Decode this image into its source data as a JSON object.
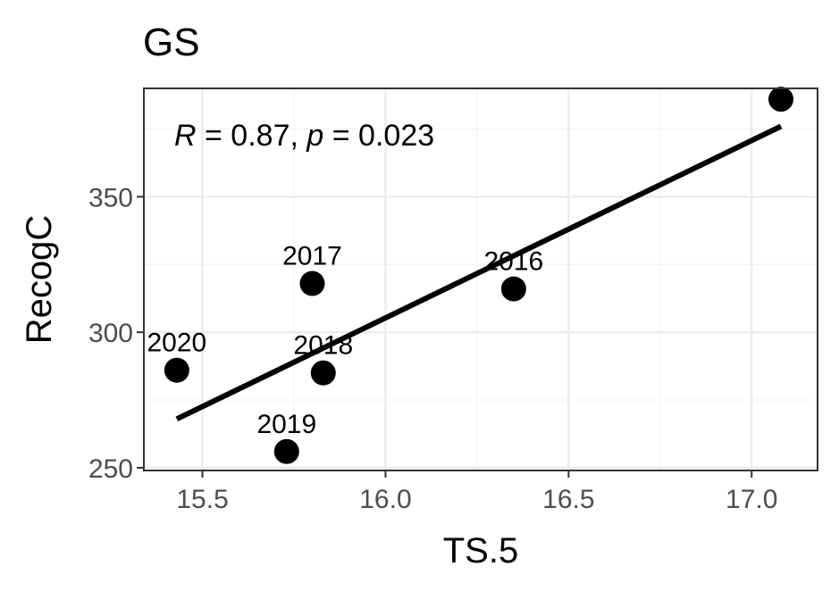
{
  "chart_data": {
    "type": "scatter",
    "title": "GS",
    "xlabel": "TS.5",
    "ylabel": "RecogC",
    "xlim": [
      15.34,
      17.18
    ],
    "ylim": [
      249,
      390
    ],
    "x_ticks": [
      15.5,
      16.0,
      16.5,
      17.0
    ],
    "x_tick_labels": [
      "15.5",
      "16.0",
      "16.5",
      "17.0"
    ],
    "y_ticks": [
      250,
      300,
      350
    ],
    "y_tick_labels": [
      "250",
      "300",
      "350"
    ],
    "grid": true,
    "points": [
      {
        "label": "2016",
        "x": 16.35,
        "y": 316
      },
      {
        "label": "2017",
        "x": 15.8,
        "y": 318
      },
      {
        "label": "2018",
        "x": 15.83,
        "y": 285
      },
      {
        "label": "2019",
        "x": 15.73,
        "y": 256
      },
      {
        "label": "2020",
        "x": 15.43,
        "y": 286
      },
      {
        "label": "",
        "x": 17.08,
        "y": 386
      }
    ],
    "fit_line": {
      "x": [
        15.43,
        17.08
      ],
      "y": [
        268,
        376
      ]
    },
    "annotation": {
      "r_symbol": "R",
      "r_text": " = 0.87, ",
      "p_symbol": "p",
      "p_text": " = 0.023"
    }
  }
}
